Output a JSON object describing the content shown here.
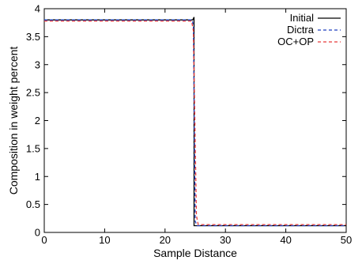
{
  "chart_data": {
    "type": "line",
    "title": "",
    "xlabel": "Sample Distance",
    "ylabel": "Composition in weight percent",
    "xlim": [
      0,
      50
    ],
    "ylim": [
      0,
      4
    ],
    "xticks": [
      0,
      10,
      20,
      30,
      40,
      50
    ],
    "yticks": [
      0,
      0.5,
      1,
      1.5,
      2,
      2.5,
      3,
      3.5,
      4
    ],
    "xtick_labels": [
      "0",
      "10",
      "20",
      "30",
      "40",
      "50"
    ],
    "ytick_labels": [
      "0",
      "0.5",
      "1",
      "1.5",
      "2",
      "2.5",
      "3",
      "3.5",
      "4"
    ],
    "grid": false,
    "legend_position": "top-right",
    "series": [
      {
        "name": "Initial",
        "color": "#000000",
        "dash": "solid",
        "x": [
          0,
          24.6,
          24.8,
          24.8,
          25.0,
          50
        ],
        "y": [
          3.8,
          3.8,
          3.85,
          0.12,
          0.12,
          0.12
        ]
      },
      {
        "name": "Dictra",
        "color": "#1f3fbf",
        "dash": "dashed",
        "x": [
          0,
          24.5,
          24.7,
          25.0,
          25.3,
          50
        ],
        "y": [
          3.8,
          3.8,
          3.7,
          0.2,
          0.12,
          0.12
        ]
      },
      {
        "name": "OC+OP",
        "color": "#e83b3b",
        "dash": "dashed",
        "x": [
          0,
          24.4,
          24.7,
          25.2,
          25.5,
          50
        ],
        "y": [
          3.78,
          3.78,
          3.6,
          0.3,
          0.14,
          0.14
        ]
      }
    ]
  }
}
